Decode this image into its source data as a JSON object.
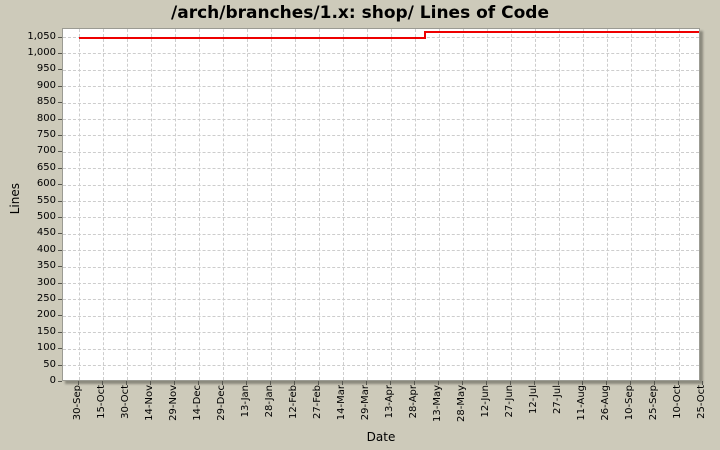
{
  "window": {
    "title": "/arch/branches/1.x: shop/ Lines of Code"
  },
  "colors": {
    "background": "#cdcaba",
    "plot_background": "#ffffff",
    "gridline": "#cdcdcd",
    "series_line": "#ee0000",
    "plot_border": "#9b9b93",
    "text": "#000000"
  },
  "chart_data": {
    "type": "line",
    "title": "/arch/branches/1.x: shop/ Lines of Code",
    "xlabel": "Date",
    "ylabel": "Lines",
    "ylim": [
      0,
      1076
    ],
    "grid": true,
    "legend_position": "none",
    "x_tick_labels": [
      "30-Sep",
      "15-Oct",
      "30-Oct",
      "14-Nov",
      "29-Nov",
      "14-Dec",
      "29-Dec",
      "13-Jan",
      "28-Jan",
      "12-Feb",
      "27-Feb",
      "14-Mar",
      "29-Mar",
      "13-Apr",
      "28-Apr",
      "13-May",
      "28-May",
      "12-Jun",
      "27-Jun",
      "12-Jul",
      "27-Jul",
      "11-Aug",
      "26-Aug",
      "10-Sep",
      "25-Sep",
      "10-Oct",
      "25-Oct"
    ],
    "y_ticks": [
      {
        "label": "0",
        "value": 0
      },
      {
        "label": "50",
        "value": 50
      },
      {
        "label": "100",
        "value": 100
      },
      {
        "label": "150",
        "value": 150
      },
      {
        "label": "200",
        "value": 200
      },
      {
        "label": "250",
        "value": 250
      },
      {
        "label": "300",
        "value": 300
      },
      {
        "label": "350",
        "value": 350
      },
      {
        "label": "400",
        "value": 400
      },
      {
        "label": "450",
        "value": 450
      },
      {
        "label": "500",
        "value": 500
      },
      {
        "label": "550",
        "value": 550
      },
      {
        "label": "600",
        "value": 600
      },
      {
        "label": "650",
        "value": 650
      },
      {
        "label": "700",
        "value": 700
      },
      {
        "label": "750",
        "value": 750
      },
      {
        "label": "800",
        "value": 800
      },
      {
        "label": "850",
        "value": 850
      },
      {
        "label": "900",
        "value": 900
      },
      {
        "label": "950",
        "value": 950
      },
      {
        "label": "1,000",
        "value": 1000
      },
      {
        "label": "1,050",
        "value": 1050
      }
    ],
    "series": [
      {
        "name": "Lines of Code",
        "color": "#ee0000",
        "summary": "Flat at ~1,050 lines from 30-Sep; single step increase to ~1,068 lines in early May (just after the 28-Apr tick); flat thereafter until the right edge past 25-Oct.",
        "points": [
          {
            "x_index": 0.0,
            "x_label": "30-Sep",
            "value": 1050
          },
          {
            "x_index": 14.4,
            "x_label": "~02-May",
            "value": 1050
          },
          {
            "x_index": 14.4,
            "x_label": "~02-May",
            "value": 1068
          },
          {
            "x_index": 25.92,
            "x_label": "25-Oct",
            "value": 1068
          }
        ]
      }
    ]
  }
}
